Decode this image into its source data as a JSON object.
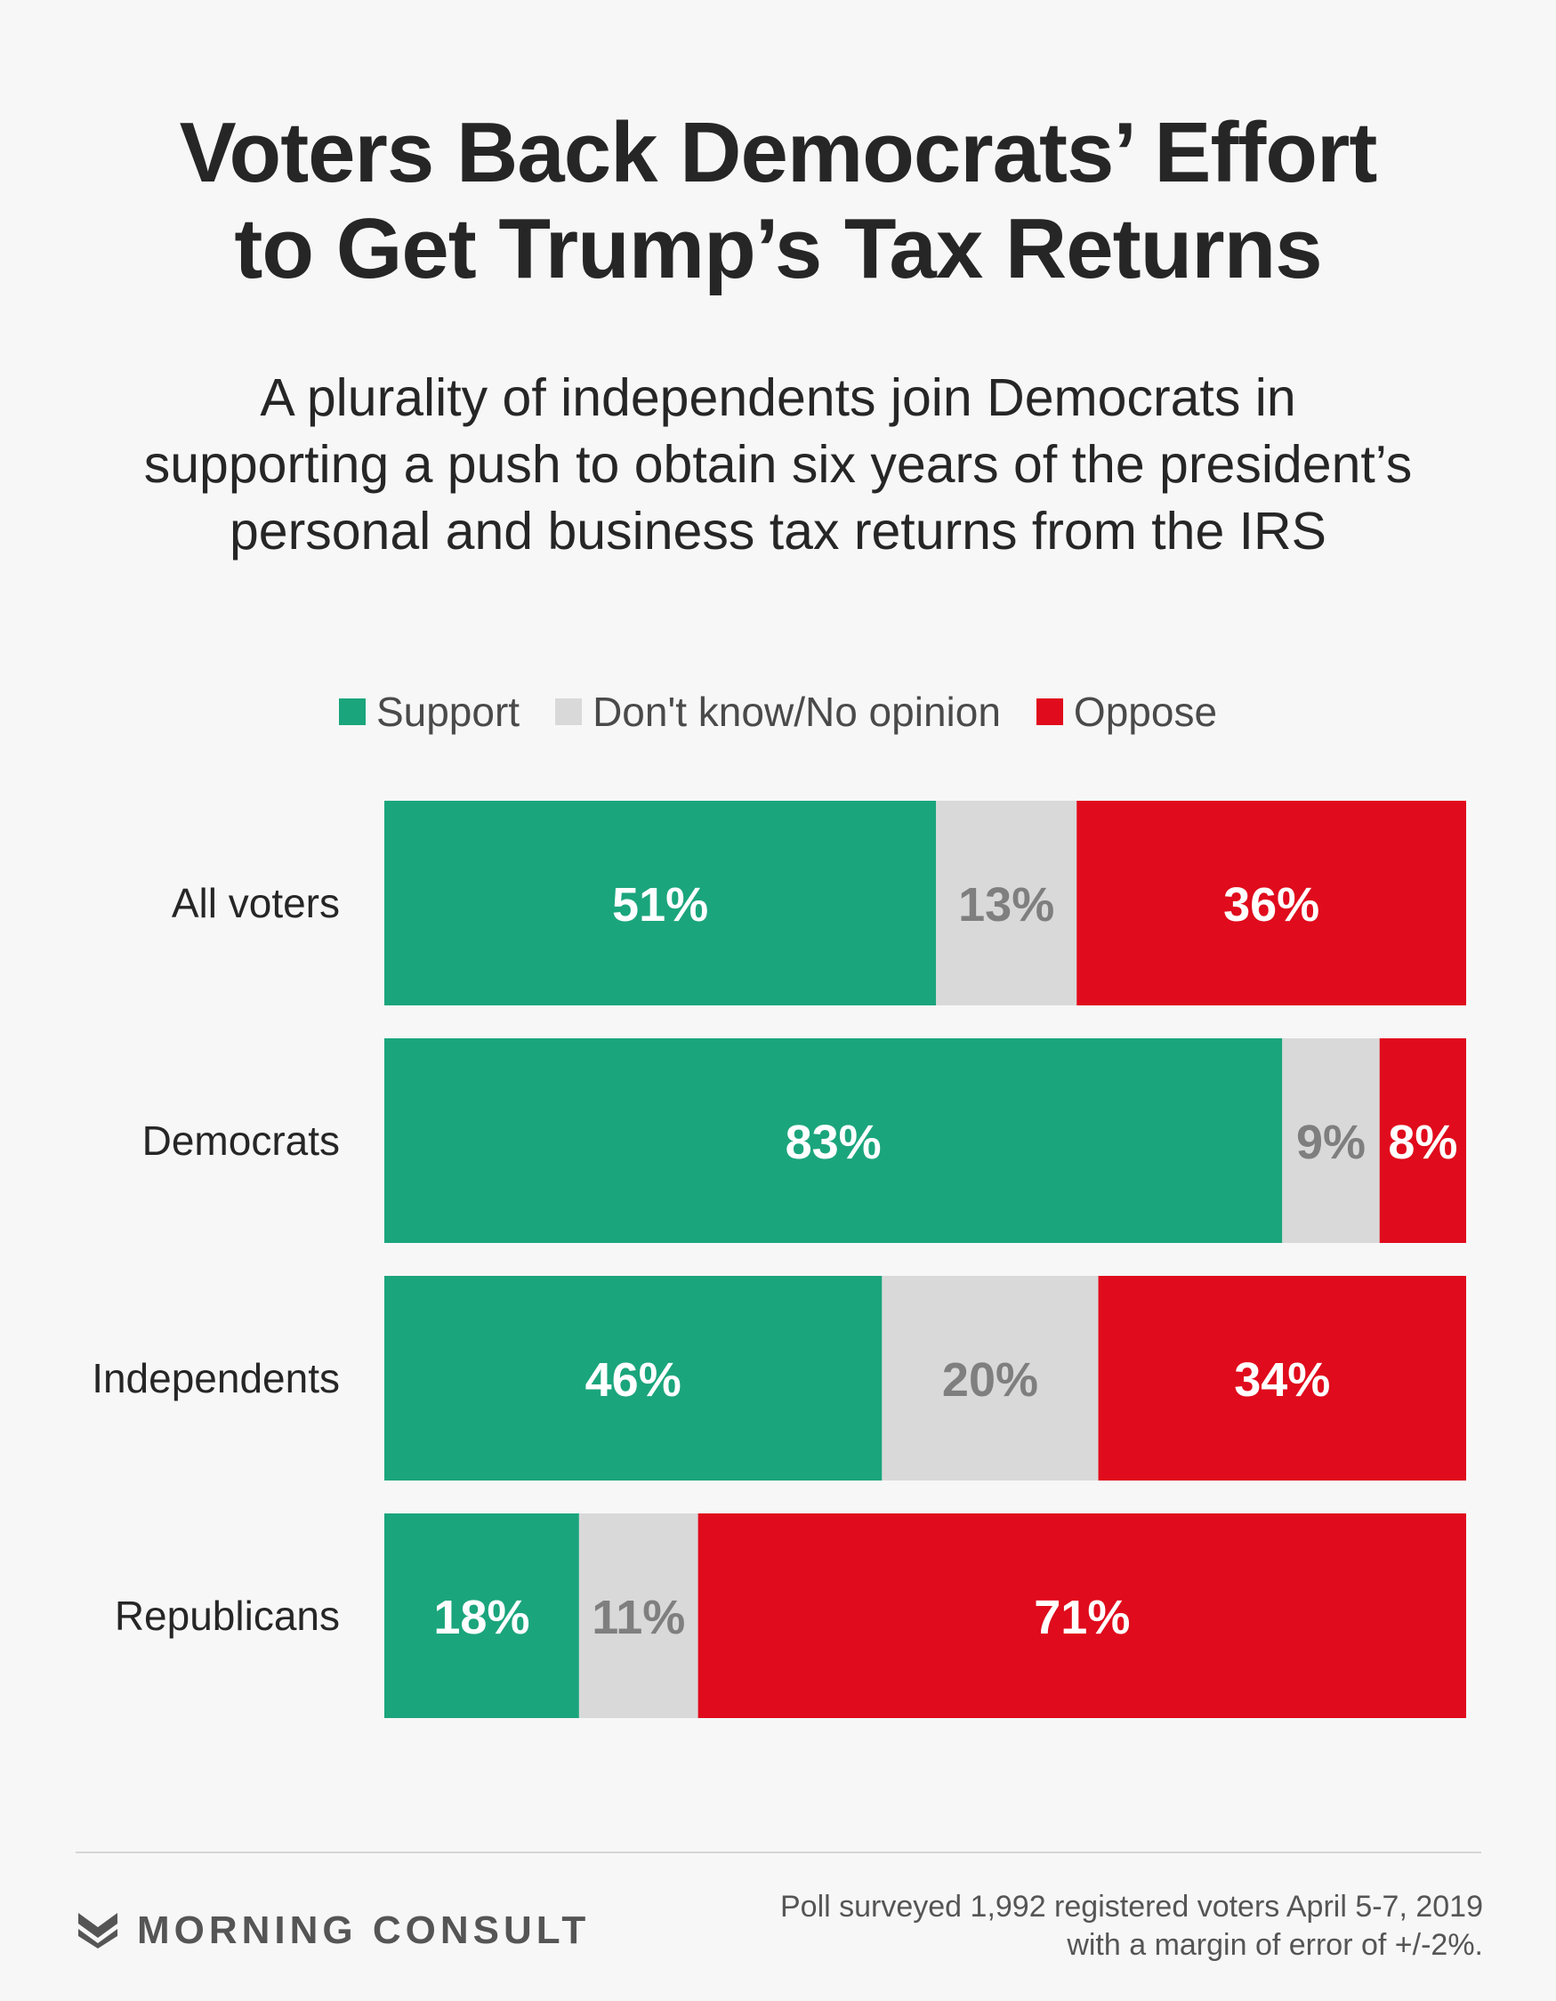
{
  "header": {
    "title_lines": [
      "Voters Back Democrats’ Effort",
      "to Get Trump’s Tax Returns"
    ],
    "subtitle_lines": [
      "A plurality of independents join Democrats in",
      "supporting a push to obtain six years of the president’s",
      "personal and business tax returns from the IRS"
    ]
  },
  "chart_data": {
    "type": "bar",
    "orientation": "horizontal",
    "stacked": true,
    "categories": [
      "All voters",
      "Democrats",
      "Independents",
      "Republicans"
    ],
    "series": [
      {
        "name": "Support",
        "values": [
          51,
          83,
          46,
          18
        ],
        "color": "#1ba57c",
        "label_color": "#ffffff"
      },
      {
        "name": "Don't know/No opinion",
        "values": [
          13,
          9,
          20,
          11
        ],
        "color": "#d9d9d9",
        "label_color": "#7f7f7f"
      },
      {
        "name": "Oppose",
        "values": [
          36,
          8,
          34,
          71
        ],
        "color": "#e00b1c",
        "label_color": "#ffffff"
      }
    ],
    "value_suffix": "%",
    "xlim": [
      0,
      100
    ],
    "legend": "top-center",
    "grid": false
  },
  "footer": {
    "logo_text": "MORNING CONSULT",
    "logo_icon": "morning-consult-chevron-icon",
    "source_lines": [
      "Poll surveyed 1,992 registered voters April 5-7, 2019",
      "with a margin of error of +/-2%."
    ]
  }
}
